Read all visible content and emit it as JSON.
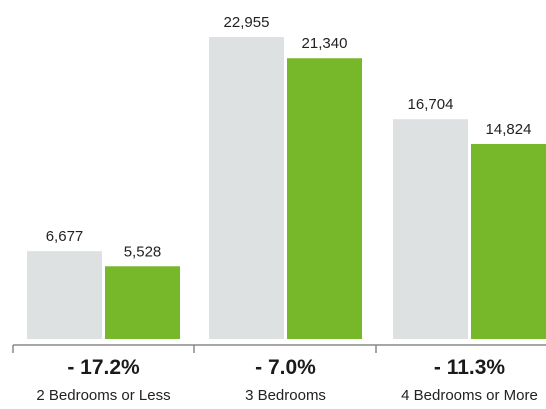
{
  "chart_data": {
    "type": "bar",
    "categories": [
      "2 Bedrooms or Less",
      "3 Bedrooms",
      "4 Bedrooms or More"
    ],
    "series": [
      {
        "values": [
          6677,
          22955,
          16704
        ],
        "color": "#dde1e1"
      },
      {
        "values": [
          5528,
          21340,
          14824
        ],
        "color": "#76b82a"
      }
    ],
    "value_labels": [
      [
        "6,677",
        "22,955",
        "16,704"
      ],
      [
        "5,528",
        "21,340",
        "14,824"
      ]
    ],
    "change_labels": [
      "- 17.2%",
      "- 7.0%",
      "- 11.3%"
    ],
    "ylim": [
      0,
      25500
    ],
    "grid": false,
    "axis_color": "#888888"
  }
}
